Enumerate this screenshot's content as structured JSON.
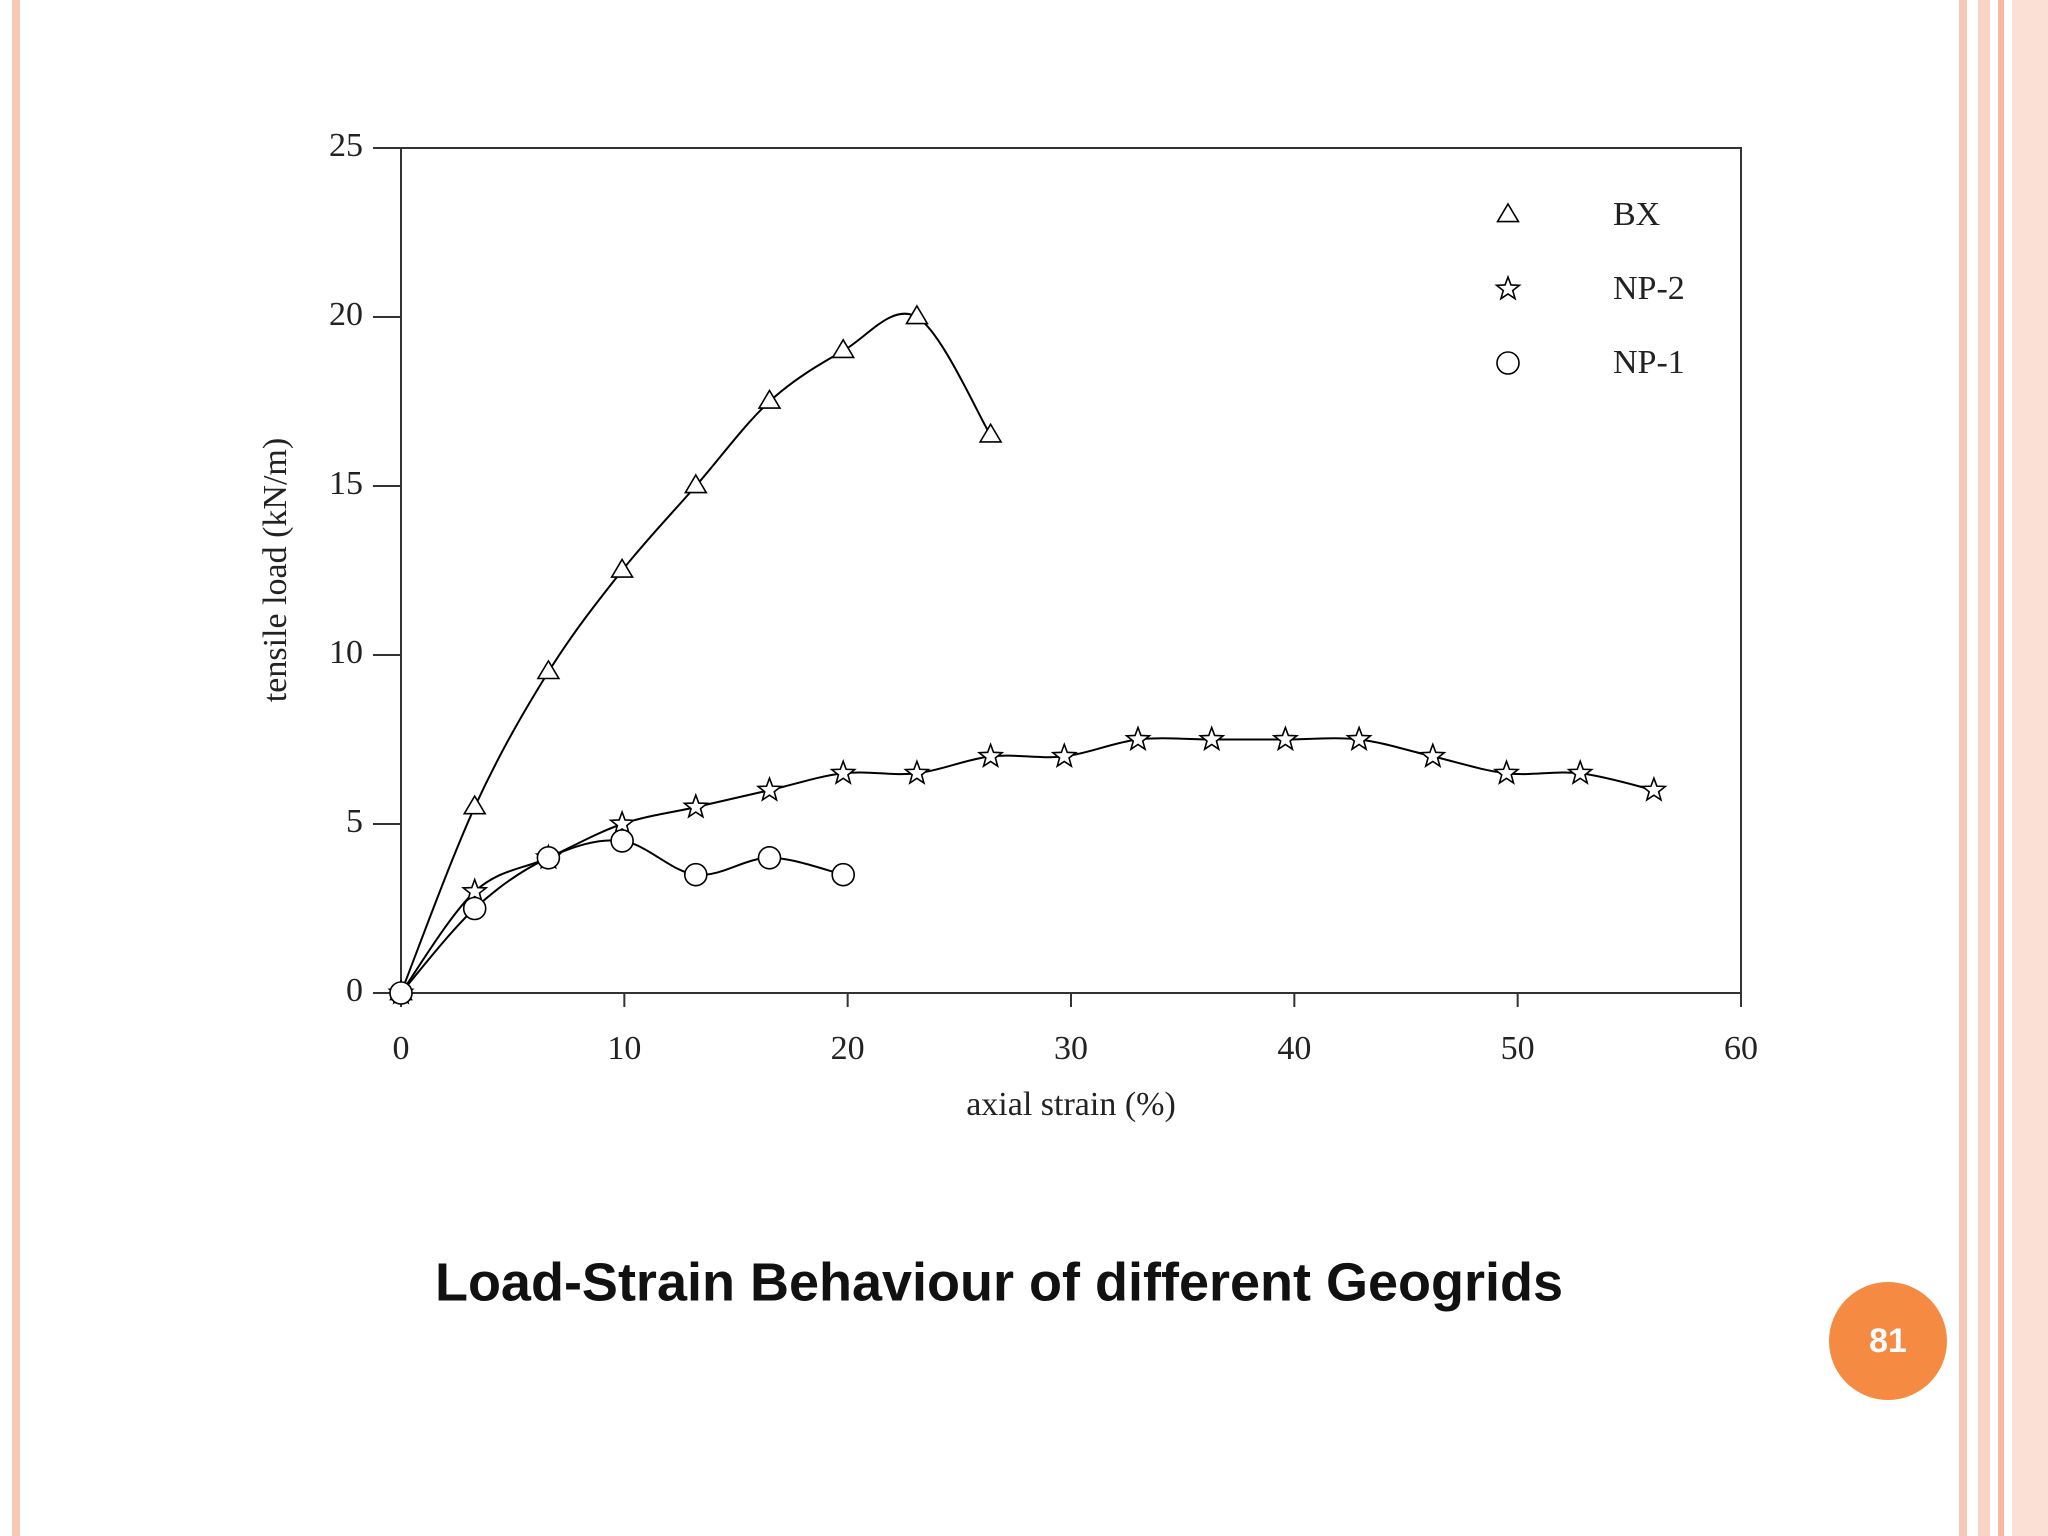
{
  "chart_data": {
    "type": "line",
    "title": "Load-Strain Behaviour of different Geogrids",
    "x_label": "axial strain (%)",
    "y_label": "tensile load (kN/m)",
    "xlim": [
      0,
      60
    ],
    "xticks": [
      0,
      10,
      20,
      30,
      40,
      50,
      60
    ],
    "ylim": [
      0,
      25
    ],
    "yticks": [
      0,
      5,
      10,
      15,
      20,
      25
    ],
    "grid": false,
    "legend": "upper right",
    "series": [
      {
        "name": "BX",
        "color": "#000000",
        "marker": "triangle",
        "x": [
          0,
          3.3,
          6.6,
          9.9,
          13.2,
          16.5,
          19.8,
          23.1,
          26.4
        ],
        "values": [
          0,
          5.5,
          9.5,
          12.5,
          15,
          17.5,
          19,
          20,
          16.5
        ]
      },
      {
        "name": "NP-2",
        "color": "#000000",
        "marker": "star",
        "x": [
          0,
          3.3,
          6.6,
          9.9,
          13.2,
          16.5,
          19.8,
          23.1,
          26.4,
          29.7,
          33,
          36.3,
          39.6,
          42.9,
          46.2,
          49.5,
          52.8,
          56.1
        ],
        "values": [
          0,
          3,
          4,
          5,
          5.5,
          6,
          6.5,
          6.5,
          7,
          7,
          7.5,
          7.5,
          7.5,
          7.5,
          7,
          6.5,
          6.5,
          6
        ]
      },
      {
        "name": "NP-1",
        "color": "#000000",
        "marker": "circle",
        "x": [
          0,
          3.3,
          6.6,
          9.9,
          13.2,
          16.5,
          19.8
        ],
        "values": [
          0,
          2.5,
          4,
          4.5,
          3.5,
          4,
          3.5
        ]
      }
    ]
  },
  "page_number": 81
}
